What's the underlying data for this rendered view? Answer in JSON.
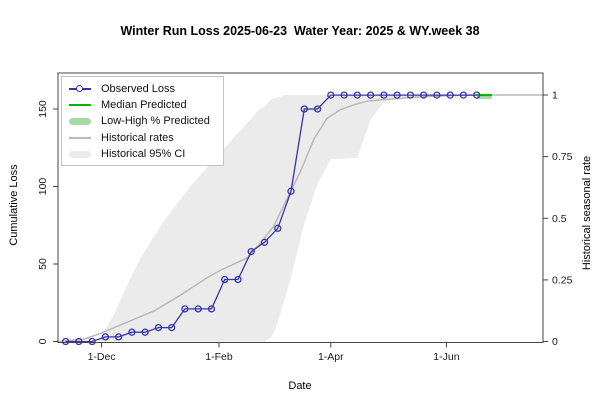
{
  "title": "Winter Run Loss 2025-06-23  Water Year: 2025 & WY.week 38",
  "axes": {
    "x": {
      "label": "Date",
      "ticks": [
        {
          "label": "1-Dec",
          "date": "2024-12-01"
        },
        {
          "label": "1-Feb",
          "date": "2025-02-01"
        },
        {
          "label": "1-Apr",
          "date": "2025-04-01"
        },
        {
          "label": "1-Jun",
          "date": "2025-06-01"
        }
      ],
      "range": [
        "2024-11-08",
        "2025-07-22"
      ]
    },
    "y_left": {
      "label": "Cumulative Loss",
      "ticks": [
        0,
        50,
        100,
        150
      ],
      "range": [
        0,
        173
      ]
    },
    "y_right": {
      "label": "Historical seasonal rate",
      "ticks": [
        0,
        0.25,
        0.5,
        0.75,
        1
      ],
      "range": [
        0,
        1
      ]
    }
  },
  "legend": {
    "items": [
      {
        "key": "observed",
        "label": "Observed Loss",
        "swatch": "line-circle"
      },
      {
        "key": "median",
        "label": "Median Predicted",
        "swatch": "line"
      },
      {
        "key": "lowhigh",
        "label": "Low-High % Predicted",
        "swatch": "band"
      },
      {
        "key": "rates",
        "label": "Historical rates",
        "swatch": "line"
      },
      {
        "key": "ci",
        "label": "Historical 95% CI",
        "swatch": "band"
      }
    ]
  },
  "colors": {
    "observed": "#3535a8",
    "median": "#00b400",
    "lowhigh": "#a6d9a6",
    "rates": "#b9b9b9",
    "ci": "#ebebeb",
    "frame": "#444444",
    "tick_text": "#1a1a1a"
  },
  "chart_data": {
    "type": "line",
    "title": "Winter Run Loss 2025-06-23  Water Year: 2025 & WY.week 38",
    "xlabel": "Date",
    "ylabel_left": "Cumulative Loss",
    "ylabel_right": "Historical seasonal rate",
    "grid": false,
    "legend_position": "top-left",
    "series": [
      {
        "name": "Observed Loss",
        "axis": "left",
        "style": "line+open-circle-markers",
        "x": [
          "2024-11-12",
          "2024-11-19",
          "2024-11-26",
          "2024-12-03",
          "2024-12-10",
          "2024-12-17",
          "2024-12-24",
          "2024-12-31",
          "2025-01-07",
          "2025-01-14",
          "2025-01-21",
          "2025-01-28",
          "2025-02-04",
          "2025-02-11",
          "2025-02-18",
          "2025-02-25",
          "2025-03-04",
          "2025-03-11",
          "2025-03-18",
          "2025-03-25",
          "2025-04-01",
          "2025-04-08",
          "2025-04-15",
          "2025-04-22",
          "2025-04-29",
          "2025-05-06",
          "2025-05-13",
          "2025-05-20",
          "2025-05-27",
          "2025-06-03",
          "2025-06-10",
          "2025-06-17"
        ],
        "values": [
          0,
          0,
          0,
          3,
          3,
          6,
          6,
          9,
          9,
          21,
          21,
          21,
          40,
          40,
          58,
          64,
          73,
          97,
          150,
          150,
          159,
          159,
          159,
          159,
          159,
          159,
          159,
          159,
          159,
          159,
          159,
          159
        ]
      },
      {
        "name": "Median Predicted",
        "axis": "left",
        "style": "line",
        "x": [
          "2025-06-17",
          "2025-06-25"
        ],
        "values": [
          159,
          159
        ]
      },
      {
        "name": "Low-High % Predicted",
        "axis": "left",
        "style": "band",
        "x": [
          "2025-06-17",
          "2025-06-25"
        ],
        "low": [
          156.5,
          156.5
        ],
        "high": [
          159,
          159
        ]
      },
      {
        "name": "Historical rates",
        "axis": "right",
        "style": "line",
        "x": [
          "2024-11-08",
          "2024-11-22",
          "2024-12-01",
          "2024-12-15",
          "2024-12-29",
          "2025-01-12",
          "2025-01-26",
          "2025-02-02",
          "2025-02-09",
          "2025-02-16",
          "2025-02-23",
          "2025-03-02",
          "2025-03-09",
          "2025-03-16",
          "2025-03-23",
          "2025-03-30",
          "2025-04-06",
          "2025-04-13",
          "2025-04-20",
          "2025-05-04",
          "2025-05-18",
          "2025-06-01",
          "2025-06-15",
          "2025-07-22"
        ],
        "values": [
          0,
          0.01,
          0.035,
          0.08,
          0.125,
          0.19,
          0.26,
          0.29,
          0.315,
          0.34,
          0.4,
          0.47,
          0.58,
          0.69,
          0.82,
          0.905,
          0.94,
          0.96,
          0.975,
          0.985,
          0.992,
          0.997,
          1.0,
          1.0
        ]
      },
      {
        "name": "Historical 95% CI",
        "axis": "right",
        "style": "band",
        "x": [
          "2024-11-08",
          "2024-11-29",
          "2024-12-07",
          "2024-12-14",
          "2024-12-21",
          "2024-12-28",
          "2025-01-04",
          "2025-01-11",
          "2025-01-18",
          "2025-01-25",
          "2025-02-01",
          "2025-02-08",
          "2025-02-15",
          "2025-02-22",
          "2025-02-25",
          "2025-03-01",
          "2025-03-04",
          "2025-03-08",
          "2025-03-11",
          "2025-03-18",
          "2025-03-25",
          "2025-04-01",
          "2025-04-15",
          "2025-04-22",
          "2025-04-29",
          "2025-05-06",
          "2025-05-20",
          "2025-06-03",
          "2025-07-22"
        ],
        "low": [
          0,
          0,
          0,
          0,
          0,
          0,
          0,
          0,
          0,
          0,
          0,
          0,
          0,
          0,
          0,
          0.02,
          0.08,
          0.18,
          0.26,
          0.48,
          0.64,
          0.74,
          0.745,
          0.9,
          0.97,
          0.985,
          0.995,
          1.0,
          1.0
        ],
        "high": [
          0,
          0,
          0.1,
          0.22,
          0.33,
          0.42,
          0.5,
          0.57,
          0.64,
          0.7,
          0.76,
          0.82,
          0.88,
          0.94,
          0.955,
          0.985,
          0.99,
          1.0,
          1.0,
          1.0,
          1.0,
          1.0,
          1.0,
          1.0,
          1.0,
          1.0,
          1.0,
          1.0,
          1.0
        ]
      }
    ]
  }
}
